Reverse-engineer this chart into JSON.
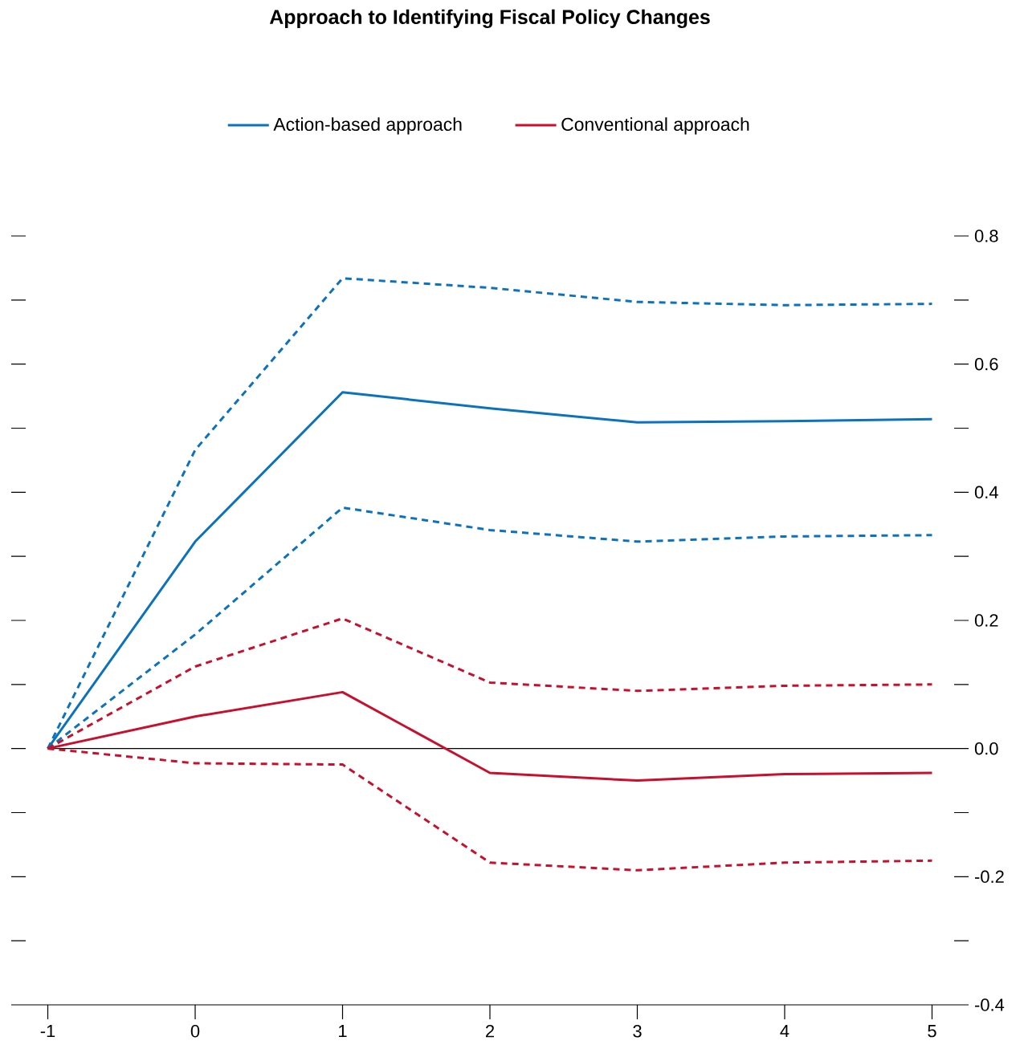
{
  "chart_data": {
    "type": "line",
    "title": "Approach to Identifying Fiscal Policy Changes",
    "x": [
      -1,
      0,
      1,
      2,
      3,
      4,
      5
    ],
    "series": [
      {
        "name": "Action-based approach",
        "color": "#0b72bd",
        "line_style": "solid",
        "values": [
          0,
          0.323,
          0.556,
          0.531,
          0.509,
          0.511,
          0.514
        ]
      },
      {
        "color": "#0b72bd",
        "line_style": "dashed",
        "values": [
          0,
          0.466,
          0.734,
          0.719,
          0.697,
          0.692,
          0.694
        ]
      },
      {
        "color": "#0b72bd",
        "line_style": "dashed",
        "values": [
          0,
          0.178,
          0.376,
          0.341,
          0.323,
          0.331,
          0.333
        ]
      },
      {
        "name": "Conventional approach",
        "color": "#c8102e",
        "line_style": "solid",
        "values": [
          0,
          0.05,
          0.088,
          -0.038,
          -0.05,
          -0.04,
          -0.038
        ]
      },
      {
        "color": "#c8102e",
        "line_style": "dashed",
        "values": [
          0,
          0.128,
          0.203,
          0.103,
          0.09,
          0.098,
          0.1
        ]
      },
      {
        "color": "#c8102e",
        "line_style": "dashed",
        "values": [
          0,
          -0.023,
          -0.025,
          -0.178,
          -0.19,
          -0.178,
          -0.175
        ]
      }
    ],
    "xlim": [
      -1.15,
      5.15
    ],
    "xticks": [
      -1,
      0,
      1,
      2,
      3,
      4,
      5
    ],
    "ylim": [
      -0.4,
      0.8
    ],
    "yticks": [
      {
        "value": -0.4,
        "label": "-0.4"
      },
      {
        "value": -0.3,
        "label": null
      },
      -0.2,
      {
        "value": -0.1,
        "label": null
      },
      {
        "value": 0,
        "label": "0.0"
      },
      {
        "value": 0.1,
        "label": null
      },
      0.2,
      {
        "value": 0.3,
        "label": null
      },
      0.4,
      {
        "value": 0.5,
        "label": null
      },
      0.6,
      {
        "value": 0.7,
        "label": null
      },
      0.8
    ],
    "ref_lines": [
      {
        "axis": "y",
        "value": 0,
        "color": "#000000"
      }
    ],
    "legend": "top",
    "grid": false
  }
}
